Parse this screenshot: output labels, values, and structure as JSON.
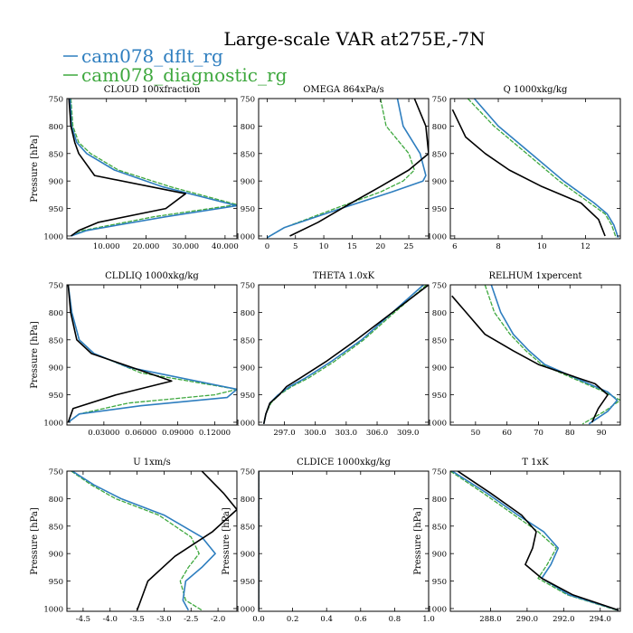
{
  "title": "Large-scale VAR at275E,-7N",
  "legend": [
    {
      "name": "cam078_dflt_rg",
      "color": "#2e7ebf"
    },
    {
      "name": "cam078_diagnostic_rg",
      "color": "#3ea83e"
    }
  ],
  "colors": {
    "dflt": "#2e7ebf",
    "diagnostic": "#3ea83e",
    "obs": "#000000"
  },
  "chart_data": [
    {
      "type": "line",
      "title": "CLOUD  100xfraction",
      "ylabel": "Pressure [hPa]",
      "xlim": [
        0,
        43
      ],
      "ylim": [
        750,
        1005
      ],
      "xticks": [
        10,
        20,
        30,
        40
      ],
      "xticklabels": [
        "10.000",
        "20.000",
        "30.000",
        "40.000"
      ],
      "yticks": [
        750,
        800,
        850,
        900,
        950,
        1000
      ],
      "series": [
        {
          "key": "obs",
          "x": [
            0.5,
            1,
            2,
            3,
            7,
            30,
            25,
            8,
            3,
            1
          ],
          "y": [
            750,
            800,
            830,
            850,
            890,
            923,
            950,
            975,
            990,
            1000
          ]
        },
        {
          "key": "dflt",
          "x": [
            0.8,
            1.2,
            2.5,
            5,
            12,
            24,
            43,
            25,
            5,
            1
          ],
          "y": [
            750,
            800,
            830,
            850,
            880,
            910,
            945,
            965,
            990,
            1000
          ]
        },
        {
          "key": "diagnostic",
          "x": [
            1,
            1.5,
            3,
            6,
            13,
            26,
            43,
            22,
            4,
            1
          ],
          "y": [
            750,
            800,
            830,
            850,
            880,
            910,
            943,
            965,
            990,
            1000
          ]
        }
      ]
    },
    {
      "type": "line",
      "title": "OMEGA  864xPa/s",
      "ylabel": "",
      "xlim": [
        -1.5,
        28.5
      ],
      "ylim": [
        750,
        1005
      ],
      "xticks": [
        0,
        5,
        10,
        15,
        20,
        25
      ],
      "xticklabels": [
        "0",
        "5",
        "10",
        "15",
        "20",
        "25"
      ],
      "yticks": [
        750,
        800,
        850,
        900,
        950,
        1000
      ],
      "series": [
        {
          "key": "obs",
          "x": [
            26,
            28,
            28.5,
            25,
            20,
            14,
            9,
            4
          ],
          "y": [
            750,
            800,
            850,
            880,
            910,
            945,
            975,
            1000
          ]
        },
        {
          "key": "dflt",
          "x": [
            23,
            24,
            27,
            28,
            27.5,
            22,
            13,
            3,
            0
          ],
          "y": [
            750,
            800,
            850,
            890,
            900,
            920,
            950,
            985,
            1003
          ]
        },
        {
          "key": "diagnostic",
          "x": [
            20,
            21,
            25,
            26,
            24,
            20,
            12,
            3,
            0
          ],
          "y": [
            750,
            800,
            850,
            880,
            900,
            920,
            950,
            985,
            1003
          ]
        }
      ]
    },
    {
      "type": "line",
      "title": "Q  1000xkg/kg",
      "ylabel": "",
      "xlim": [
        5.8,
        13.6
      ],
      "ylim": [
        750,
        1005
      ],
      "xticks": [
        6,
        8,
        10,
        12
      ],
      "xticklabels": [
        "6",
        "8",
        "10",
        "12"
      ],
      "yticks": [
        750,
        800,
        850,
        900,
        950,
        1000
      ],
      "series": [
        {
          "key": "obs",
          "x": [
            5.9,
            6.5,
            7.4,
            8.5,
            10,
            11.8,
            12.6,
            12.9
          ],
          "y": [
            770,
            820,
            850,
            880,
            910,
            940,
            970,
            1000
          ]
        },
        {
          "key": "dflt",
          "x": [
            6.9,
            8,
            9.5,
            11,
            12.4,
            13,
            13.3,
            13.5
          ],
          "y": [
            750,
            800,
            850,
            900,
            940,
            960,
            980,
            1003
          ]
        },
        {
          "key": "diagnostic",
          "x": [
            6.6,
            7.8,
            9.3,
            10.8,
            12.2,
            12.9,
            13.2,
            13.4
          ],
          "y": [
            750,
            800,
            850,
            900,
            940,
            960,
            980,
            1003
          ]
        }
      ]
    },
    {
      "type": "line",
      "title": "CLDLIQ  1000xkg/kg",
      "ylabel": "Pressure [hPa]",
      "xlim": [
        0,
        0.138
      ],
      "ylim": [
        750,
        1005
      ],
      "xticks": [
        0.03,
        0.06,
        0.09,
        0.12
      ],
      "xticklabels": [
        "0.03000",
        "0.06000",
        "0.09000",
        "0.12000"
      ],
      "yticks": [
        750,
        800,
        850,
        900,
        950,
        1000
      ],
      "series": [
        {
          "key": "obs",
          "x": [
            0.001,
            0.003,
            0.008,
            0.02,
            0.085,
            0.04,
            0.005,
            0.001
          ],
          "y": [
            750,
            800,
            850,
            875,
            925,
            950,
            975,
            1000
          ]
        },
        {
          "key": "dflt",
          "x": [
            0.001,
            0.004,
            0.01,
            0.022,
            0.05,
            0.138,
            0.13,
            0.06,
            0.01,
            0.001
          ],
          "y": [
            750,
            800,
            850,
            875,
            900,
            940,
            955,
            970,
            985,
            1000
          ]
        },
        {
          "key": "diagnostic",
          "x": [
            0.001,
            0.004,
            0.01,
            0.022,
            0.06,
            0.138,
            0.12,
            0.05,
            0.01,
            0.001
          ],
          "y": [
            750,
            800,
            850,
            875,
            910,
            940,
            950,
            965,
            985,
            1000
          ]
        }
      ]
    },
    {
      "type": "line",
      "title": "THETA  1.0xK",
      "ylabel": "",
      "xlim": [
        294.5,
        311
      ],
      "ylim": [
        750,
        1005
      ],
      "xticks": [
        297,
        300,
        303,
        306,
        309
      ],
      "xticklabels": [
        "297.0",
        "300.0",
        "303.0",
        "306.0",
        "309.0"
      ],
      "yticks": [
        750,
        800,
        850,
        900,
        950,
        1000
      ],
      "series": [
        {
          "key": "obs",
          "x": [
            311,
            307.5,
            304,
            301,
            298.5,
            297.2,
            296.5,
            295.6,
            295.2,
            295
          ],
          "y": [
            750,
            800,
            850,
            890,
            920,
            935,
            950,
            965,
            985,
            1003
          ]
        },
        {
          "key": "dflt",
          "x": [
            310.5,
            307.5,
            304.5,
            301.5,
            299,
            297.5,
            296.4,
            295.6,
            295.2,
            295
          ],
          "y": [
            750,
            800,
            850,
            890,
            920,
            935,
            950,
            965,
            985,
            1003
          ]
        },
        {
          "key": "diagnostic",
          "x": [
            310.8,
            307.7,
            304.7,
            301.8,
            299.3,
            297.7,
            296.5,
            295.7,
            295.2,
            295
          ],
          "y": [
            750,
            800,
            850,
            890,
            920,
            935,
            950,
            965,
            985,
            1003
          ]
        }
      ]
    },
    {
      "type": "line",
      "title": "RELHUM  1xpercent",
      "ylabel": "",
      "xlim": [
        42,
        96
      ],
      "ylim": [
        750,
        1005
      ],
      "xticks": [
        50,
        60,
        70,
        80,
        90
      ],
      "xticklabels": [
        "50",
        "60",
        "70",
        "80",
        "90"
      ],
      "yticks": [
        750,
        800,
        850,
        900,
        950,
        1000
      ],
      "series": [
        {
          "key": "obs",
          "x": [
            42.5,
            47,
            53,
            62,
            70,
            88,
            92,
            89,
            87
          ],
          "y": [
            770,
            800,
            840,
            870,
            895,
            930,
            950,
            975,
            1000
          ]
        },
        {
          "key": "dflt",
          "x": [
            55,
            58,
            62,
            67,
            72,
            84,
            92,
            95,
            92,
            86
          ],
          "y": [
            750,
            800,
            840,
            870,
            895,
            925,
            945,
            960,
            980,
            1003
          ]
        },
        {
          "key": "diagnostic",
          "x": [
            53,
            56,
            61,
            66,
            71,
            83,
            91,
            96,
            91,
            84
          ],
          "y": [
            750,
            800,
            840,
            870,
            895,
            925,
            945,
            960,
            980,
            1003
          ]
        }
      ]
    },
    {
      "type": "line",
      "title": "U  1xm/s",
      "ylabel": "Pressure [hPa]",
      "xlim": [
        -4.8,
        -1.65
      ],
      "ylim": [
        750,
        1005
      ],
      "xticks": [
        -4.5,
        -4,
        -3.5,
        -3,
        -2.5,
        -2
      ],
      "xticklabels": [
        "-4.5",
        "-4.0",
        "-3.5",
        "-3.0",
        "-2.5",
        "-2.0"
      ],
      "yticks": [
        750,
        800,
        850,
        900,
        950,
        1000
      ],
      "series": [
        {
          "key": "obs",
          "x": [
            -2.3,
            -1.9,
            -1.65,
            -2.1,
            -2.8,
            -3.3,
            -3.45,
            -3.5
          ],
          "y": [
            750,
            790,
            820,
            860,
            905,
            950,
            990,
            1003
          ]
        },
        {
          "key": "dflt",
          "x": [
            -4.7,
            -4.3,
            -3.8,
            -3.0,
            -2.3,
            -2.05,
            -2.3,
            -2.6,
            -2.65,
            -2.55
          ],
          "y": [
            750,
            775,
            800,
            830,
            870,
            900,
            925,
            950,
            985,
            1003
          ]
        },
        {
          "key": "diagnostic",
          "x": [
            -4.72,
            -4.35,
            -3.9,
            -3.1,
            -2.5,
            -2.35,
            -2.55,
            -2.7,
            -2.6,
            -2.3
          ],
          "y": [
            750,
            775,
            800,
            830,
            870,
            900,
            925,
            950,
            985,
            1003
          ]
        }
      ]
    },
    {
      "type": "line",
      "title": "CLDICE  1000xkg/kg",
      "ylabel": "Pressure [hPa]",
      "xlim": [
        0,
        1
      ],
      "ylim": [
        750,
        1005
      ],
      "xticks": [
        0,
        0.2,
        0.4,
        0.6,
        0.8,
        1.0
      ],
      "xticklabels": [
        "0.0",
        "0.2",
        "0.4",
        "0.6",
        "0.8",
        "1.0"
      ],
      "yticks": [
        750,
        800,
        850,
        900,
        950,
        1000
      ],
      "series": [
        {
          "key": "obs",
          "x": [
            0,
            0
          ],
          "y": [
            750,
            1003
          ]
        },
        {
          "key": "dflt",
          "x": [
            0,
            0
          ],
          "y": [
            750,
            1003
          ]
        },
        {
          "key": "diagnostic",
          "x": [
            0,
            0
          ],
          "y": [
            750,
            1003
          ]
        }
      ]
    },
    {
      "type": "line",
      "title": "T  1xK",
      "ylabel": "Pressure [hPa]",
      "xlim": [
        285.8,
        295.1
      ],
      "ylim": [
        750,
        1005
      ],
      "xticks": [
        288,
        290,
        292,
        294
      ],
      "xticklabels": [
        "288.0",
        "290.0",
        "292.0",
        "294.0"
      ],
      "yticks": [
        750,
        800,
        850,
        900,
        950,
        1000
      ],
      "series": [
        {
          "key": "obs",
          "x": [
            286.2,
            288,
            289.7,
            290.5,
            290.3,
            289.9,
            290.8,
            292.5,
            295
          ],
          "y": [
            750,
            790,
            830,
            860,
            890,
            920,
            945,
            975,
            1003
          ]
        },
        {
          "key": "dflt",
          "x": [
            285.9,
            287.8,
            289.5,
            290.9,
            291.7,
            291.3,
            290.8,
            292.3,
            295
          ],
          "y": [
            750,
            790,
            830,
            860,
            890,
            920,
            945,
            975,
            1003
          ]
        },
        {
          "key": "diagnostic",
          "x": [
            285.8,
            287.6,
            289.3,
            290.6,
            291.6,
            291.1,
            290.6,
            292.2,
            294.9
          ],
          "y": [
            750,
            790,
            830,
            860,
            890,
            920,
            945,
            975,
            1003
          ]
        }
      ]
    }
  ]
}
